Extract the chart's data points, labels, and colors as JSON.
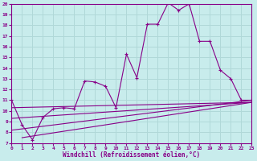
{
  "xlabel": "Windchill (Refroidissement éolien,°C)",
  "xlim": [
    0,
    23
  ],
  "ylim": [
    7,
    20
  ],
  "yticks": [
    7,
    8,
    9,
    10,
    11,
    12,
    13,
    14,
    15,
    16,
    17,
    18,
    19,
    20
  ],
  "xticks": [
    0,
    1,
    2,
    3,
    4,
    5,
    6,
    7,
    8,
    9,
    10,
    11,
    12,
    13,
    14,
    15,
    16,
    17,
    18,
    19,
    20,
    21,
    22,
    23
  ],
  "bg_color": "#c8ecec",
  "grid_color": "#b0d8d8",
  "line_color": "#880088",
  "line1_x": [
    0,
    1,
    2,
    3,
    4,
    5,
    6,
    7,
    8,
    9,
    10,
    11,
    12,
    13,
    14,
    15,
    16,
    17,
    18,
    19,
    20,
    21,
    22,
    23
  ],
  "line1_y": [
    11,
    8.7,
    7.3,
    9.4,
    10.2,
    10.3,
    10.2,
    12.8,
    12.7,
    12.3,
    10.3,
    15.3,
    13.1,
    18.1,
    18.1,
    20.1,
    19.4,
    20.0,
    16.5,
    16.5,
    13.8,
    13.0,
    11.0,
    11.0
  ],
  "line2_x": [
    0,
    23
  ],
  "line2_y": [
    8.2,
    11.0
  ],
  "line3_x": [
    0,
    23
  ],
  "line3_y": [
    9.3,
    10.8
  ],
  "line4_x": [
    0,
    23
  ],
  "line4_y": [
    10.3,
    10.8
  ],
  "line5_x": [
    1,
    23
  ],
  "line5_y": [
    7.5,
    10.8
  ]
}
